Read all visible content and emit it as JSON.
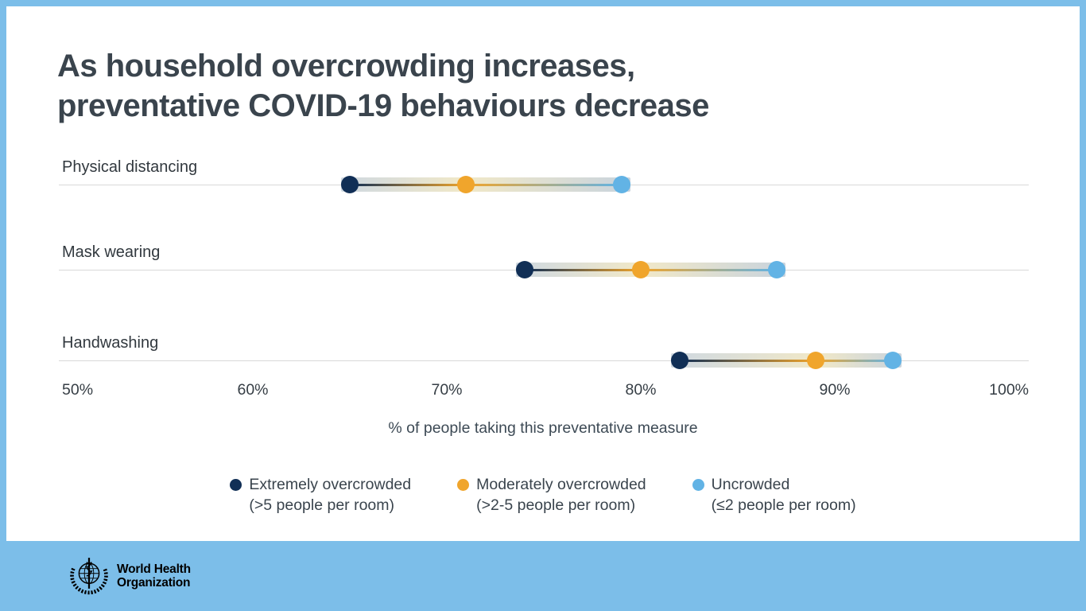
{
  "title": "As household overcrowding increases,\npreventative COVID-19 behaviours decrease",
  "colors": {
    "frame_blue": "#7cbee9",
    "title_text": "#3a444d",
    "band_blue_gray": "#ccd6df",
    "band_pale_gold": "#f0e7c5",
    "band_blue_gray_right": "#c6d1db",
    "gridline": "#d9d9d9"
  },
  "chart_data": {
    "type": "scatter",
    "subtype": "dumbbell-dot-plot",
    "categories": [
      "Physical distancing",
      "Mask wearing",
      "Handwashing"
    ],
    "series": [
      {
        "name": "Extremely overcrowded",
        "detail": "(>5 people per room)",
        "color": "#112f56",
        "values": [
          65,
          74,
          82
        ]
      },
      {
        "name": "Moderately overcrowded",
        "detail": "(>2-5 people per room)",
        "color": "#f0a52c",
        "values": [
          71,
          80,
          89
        ]
      },
      {
        "name": "Uncrowded",
        "detail": "(≤2 people per room)",
        "color": "#62b3e5",
        "values": [
          79,
          87,
          93
        ]
      }
    ],
    "xlabel": "% of people taking this preventative measure",
    "x_ticks": [
      "50%",
      "60%",
      "70%",
      "80%",
      "90%",
      "100%"
    ],
    "xlim": [
      50,
      100
    ],
    "grid": "one horizontal line per category",
    "legend_position": "bottom-center"
  },
  "footer": {
    "logo_line1": "World Health",
    "logo_line2": "Organization"
  }
}
